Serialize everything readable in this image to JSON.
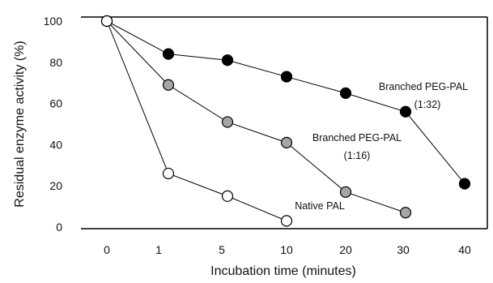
{
  "chart_data": {
    "type": "line",
    "xlabel": "Incubation time (minutes)",
    "ylabel": "Residual enzyme activity (%)",
    "x_tick_labels": [
      "0",
      "1",
      "5",
      "10",
      "20",
      "30",
      "40"
    ],
    "y_tick_labels": [
      "0",
      "20",
      "40",
      "60",
      "80",
      "100"
    ],
    "ylim": [
      0,
      100
    ],
    "grid": false,
    "series": [
      {
        "name": "Branched PEG-PAL (1:32)",
        "marker_fill": "#000000",
        "points": [
          {
            "x": 0,
            "y": 100
          },
          {
            "x": 1,
            "y": 84
          },
          {
            "x": 5,
            "y": 81
          },
          {
            "x": 10,
            "y": 73
          },
          {
            "x": 20,
            "y": 65
          },
          {
            "x": 30,
            "y": 56
          },
          {
            "x": 40,
            "y": 21
          }
        ]
      },
      {
        "name": "Branched PEG-PAL (1:16)",
        "marker_fill": "#a6a6a6",
        "points": [
          {
            "x": 0,
            "y": 100
          },
          {
            "x": 1,
            "y": 69
          },
          {
            "x": 5,
            "y": 51
          },
          {
            "x": 10,
            "y": 41
          },
          {
            "x": 20,
            "y": 17
          },
          {
            "x": 30,
            "y": 7
          }
        ]
      },
      {
        "name": "Native PAL",
        "marker_fill": "#ffffff",
        "points": [
          {
            "x": 0,
            "y": 100
          },
          {
            "x": 1,
            "y": 26
          },
          {
            "x": 5,
            "y": 15
          },
          {
            "x": 10,
            "y": 3
          }
        ]
      }
    ],
    "annotations": {
      "s1_line1": "Branched PEG-PAL",
      "s1_line2": "(1:32)",
      "s2_line1": "Branched PEG-PAL",
      "s2_line2": "(1:16)",
      "s3_line1": "Native PAL"
    }
  }
}
